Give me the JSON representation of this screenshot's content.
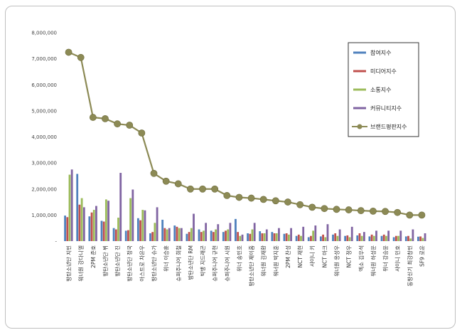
{
  "chart_data": {
    "type": "bar",
    "categories": [
      "방탄소년단 지민",
      "워너원 강다니엘",
      "2PM 준호",
      "방탄소년단 뷔",
      "방탄소년단 진",
      "방탄소년단 정국",
      "아스트로 차은우",
      "방탄소년단 슈가",
      "위너 이승훈",
      "슈퍼주니어 희철",
      "방탄소년단 RM",
      "빅뱅 지드래곤",
      "슈퍼주니어 규현",
      "슈퍼주니어 시원",
      "위너 송민호",
      "방탄소년단 제이홉",
      "워너원 김재환",
      "워너원 박지훈",
      "2PM 찬성",
      "NCT 재현",
      "샤이니 키",
      "NCT 마크",
      "워너원 옹성우",
      "NCT 정우",
      "엑소 김우석",
      "워너원 하성운",
      "위너 강승윤",
      "샤이니 민호",
      "동방신기 최강창민",
      "SF9 로운"
    ],
    "series": [
      {
        "name": "참여지수",
        "type": "bar",
        "color": "#4f81bd",
        "values": [
          980000,
          2580000,
          950000,
          780000,
          500000,
          400000,
          880000,
          300000,
          820000,
          600000,
          280000,
          450000,
          400000,
          350000,
          850000,
          300000,
          380000,
          350000,
          280000,
          200000,
          150000,
          180000,
          250000,
          200000,
          220000,
          180000,
          200000,
          150000,
          180000,
          170000
        ]
      },
      {
        "name": "미디어지수",
        "type": "bar",
        "color": "#c0504d",
        "values": [
          920000,
          1400000,
          1100000,
          750000,
          450000,
          420000,
          800000,
          350000,
          500000,
          550000,
          350000,
          350000,
          350000,
          400000,
          350000,
          280000,
          300000,
          300000,
          300000,
          250000,
          200000,
          250000,
          300000,
          220000,
          300000,
          250000,
          250000,
          200000,
          200000,
          180000
        ]
      },
      {
        "name": "소통지수",
        "type": "bar",
        "color": "#9bbb59",
        "values": [
          2550000,
          1650000,
          1200000,
          1600000,
          900000,
          1650000,
          1200000,
          700000,
          450000,
          500000,
          500000,
          400000,
          450000,
          450000,
          200000,
          450000,
          300000,
          300000,
          250000,
          200000,
          400000,
          150000,
          200000,
          150000,
          200000,
          200000,
          200000,
          200000,
          100000,
          120000
        ]
      },
      {
        "name": "커뮤니티지수",
        "type": "bar",
        "color": "#8064a2",
        "values": [
          2750000,
          1300000,
          1350000,
          1550000,
          2620000,
          1980000,
          1180000,
          1300000,
          500000,
          500000,
          1050000,
          700000,
          650000,
          700000,
          250000,
          700000,
          450000,
          500000,
          500000,
          550000,
          600000,
          650000,
          450000,
          550000,
          350000,
          400000,
          400000,
          400000,
          450000,
          300000
        ]
      },
      {
        "name": "브랜드평판지수",
        "type": "line",
        "color": "#8c8a55",
        "values": [
          7250000,
          7050000,
          4750000,
          4700000,
          4500000,
          4450000,
          4150000,
          2600000,
          2300000,
          2200000,
          2000000,
          2000000,
          2000000,
          1750000,
          1680000,
          1650000,
          1600000,
          1550000,
          1500000,
          1400000,
          1300000,
          1250000,
          1220000,
          1200000,
          1170000,
          1150000,
          1140000,
          1100000,
          1000000,
          1000000
        ]
      }
    ],
    "ylim": [
      0,
      8000000
    ],
    "yticks": [
      "-",
      "1,000,000",
      "2,000,000",
      "3,000,000",
      "4,000,000",
      "5,000,000",
      "6,000,000",
      "7,000,000",
      "8,000,000"
    ],
    "legend_position": "right",
    "grid": false
  }
}
